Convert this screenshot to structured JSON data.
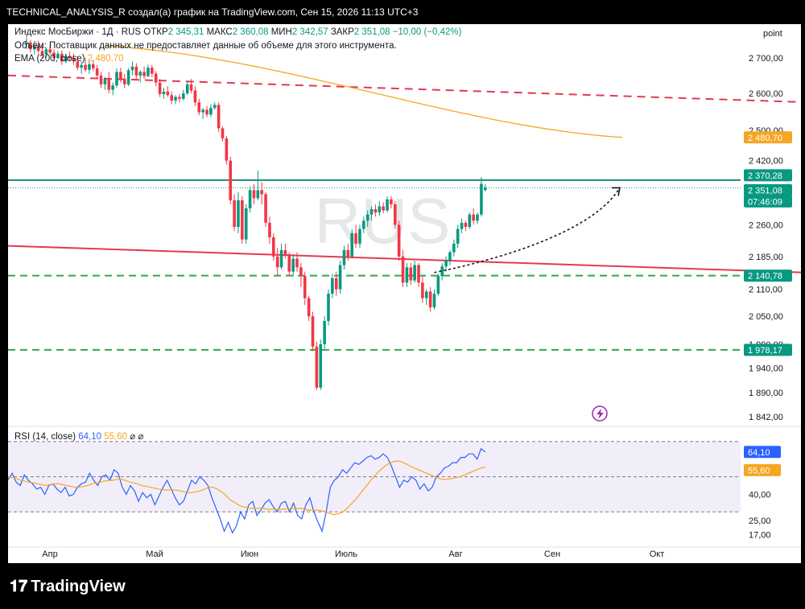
{
  "header": {
    "title": "TECHNICAL_ANALYSIS_R создал(а) график на TradingView.com, Сен 15, 2026 11:13 UTC+3"
  },
  "legend": {
    "symbol": "Индекс МосБиржи · 1Д · RUS",
    "open_label": "ОТКР",
    "open": "2 345,31",
    "high_label": "МАКС",
    "high": "2 360,08",
    "low_label": "МИН",
    "low": "2 342,57",
    "close_label": "ЗАКР",
    "close": "2 351,08",
    "change": "−10,00 (−0,42%)",
    "volume_note": "Объём: Поставщик данных не предоставляет данные об объеме для этого инструмента.",
    "ema_label": "EMA (200, close)",
    "ema_value": "2 480,70",
    "rsi_label": "RSI (14, close)",
    "rsi_value": "64,10",
    "rsi_ma_value": "55,60",
    "rsi_extra": "⌀ ⌀"
  },
  "watermark": "RUS",
  "price_axis": {
    "unit": "point",
    "ticks": [
      "2 700,00",
      "2 600,00",
      "2 500,00",
      "2 420,00",
      "2 260,00",
      "2 185,00",
      "2 110,00",
      "2 050,00",
      "1 990,00",
      "1 940,00",
      "1 890,00",
      "1 842,00"
    ],
    "badges": [
      {
        "text": "2 480,70",
        "color": "#f5a623"
      },
      {
        "text": "2 370,28",
        "color": "#089981"
      },
      {
        "text": "2 351,08",
        "color": "#089981"
      },
      {
        "text": "07:46:09",
        "color": "#089981"
      },
      {
        "text": "2 140,78",
        "color": "#089981"
      },
      {
        "text": "1 978,17",
        "color": "#089981"
      }
    ]
  },
  "rsi_axis": {
    "ticks": [
      "40,00",
      "25,00",
      "17,00"
    ],
    "badges": [
      {
        "text": "64,10",
        "color": "#2962ff"
      },
      {
        "text": "55,60",
        "color": "#f5a623"
      }
    ]
  },
  "time_axis": [
    "Апр",
    "Май",
    "Июн",
    "Июль",
    "Авг",
    "Сен",
    "Окт"
  ],
  "footer": {
    "brand": "TradingView"
  },
  "chart_data": {
    "type": "candlestick",
    "price_scale": [
      1842,
      2700
    ],
    "candles": [
      {
        "o": 2740,
        "h": 2760,
        "l": 2725,
        "c": 2745
      },
      {
        "o": 2745,
        "h": 2752,
        "l": 2715,
        "c": 2725
      },
      {
        "o": 2725,
        "h": 2745,
        "l": 2710,
        "c": 2735
      },
      {
        "o": 2735,
        "h": 2750,
        "l": 2715,
        "c": 2720
      },
      {
        "o": 2720,
        "h": 2735,
        "l": 2700,
        "c": 2710
      },
      {
        "o": 2710,
        "h": 2730,
        "l": 2700,
        "c": 2725
      },
      {
        "o": 2725,
        "h": 2740,
        "l": 2710,
        "c": 2715
      },
      {
        "o": 2715,
        "h": 2725,
        "l": 2690,
        "c": 2700
      },
      {
        "o": 2700,
        "h": 2720,
        "l": 2695,
        "c": 2712
      },
      {
        "o": 2712,
        "h": 2722,
        "l": 2680,
        "c": 2690
      },
      {
        "o": 2690,
        "h": 2712,
        "l": 2685,
        "c": 2705
      },
      {
        "o": 2705,
        "h": 2718,
        "l": 2690,
        "c": 2700
      },
      {
        "o": 2700,
        "h": 2712,
        "l": 2680,
        "c": 2690
      },
      {
        "o": 2690,
        "h": 2705,
        "l": 2665,
        "c": 2672
      },
      {
        "o": 2672,
        "h": 2690,
        "l": 2655,
        "c": 2680
      },
      {
        "o": 2680,
        "h": 2700,
        "l": 2660,
        "c": 2666
      },
      {
        "o": 2666,
        "h": 2690,
        "l": 2655,
        "c": 2682
      },
      {
        "o": 2682,
        "h": 2695,
        "l": 2662,
        "c": 2670
      },
      {
        "o": 2670,
        "h": 2680,
        "l": 2640,
        "c": 2650
      },
      {
        "o": 2650,
        "h": 2660,
        "l": 2615,
        "c": 2625
      },
      {
        "o": 2625,
        "h": 2645,
        "l": 2610,
        "c": 2640
      },
      {
        "o": 2640,
        "h": 2660,
        "l": 2600,
        "c": 2610
      },
      {
        "o": 2610,
        "h": 2630,
        "l": 2595,
        "c": 2622
      },
      {
        "o": 2622,
        "h": 2670,
        "l": 2615,
        "c": 2660
      },
      {
        "o": 2660,
        "h": 2672,
        "l": 2630,
        "c": 2640
      },
      {
        "o": 2640,
        "h": 2655,
        "l": 2615,
        "c": 2625
      },
      {
        "o": 2625,
        "h": 2670,
        "l": 2620,
        "c": 2665
      },
      {
        "o": 2665,
        "h": 2690,
        "l": 2650,
        "c": 2675
      },
      {
        "o": 2675,
        "h": 2685,
        "l": 2640,
        "c": 2650
      },
      {
        "o": 2650,
        "h": 2665,
        "l": 2630,
        "c": 2660
      },
      {
        "o": 2660,
        "h": 2675,
        "l": 2640,
        "c": 2648
      },
      {
        "o": 2648,
        "h": 2680,
        "l": 2645,
        "c": 2672
      },
      {
        "o": 2672,
        "h": 2680,
        "l": 2645,
        "c": 2655
      },
      {
        "o": 2655,
        "h": 2662,
        "l": 2620,
        "c": 2630
      },
      {
        "o": 2630,
        "h": 2640,
        "l": 2590,
        "c": 2598
      },
      {
        "o": 2598,
        "h": 2615,
        "l": 2585,
        "c": 2605
      },
      {
        "o": 2605,
        "h": 2620,
        "l": 2590,
        "c": 2595
      },
      {
        "o": 2595,
        "h": 2605,
        "l": 2570,
        "c": 2580
      },
      {
        "o": 2580,
        "h": 2595,
        "l": 2570,
        "c": 2590
      },
      {
        "o": 2590,
        "h": 2598,
        "l": 2575,
        "c": 2585
      },
      {
        "o": 2585,
        "h": 2610,
        "l": 2580,
        "c": 2600
      },
      {
        "o": 2600,
        "h": 2635,
        "l": 2595,
        "c": 2625
      },
      {
        "o": 2625,
        "h": 2640,
        "l": 2600,
        "c": 2608
      },
      {
        "o": 2608,
        "h": 2620,
        "l": 2565,
        "c": 2575
      },
      {
        "o": 2575,
        "h": 2585,
        "l": 2540,
        "c": 2548
      },
      {
        "o": 2548,
        "h": 2560,
        "l": 2530,
        "c": 2555
      },
      {
        "o": 2555,
        "h": 2565,
        "l": 2535,
        "c": 2542
      },
      {
        "o": 2542,
        "h": 2570,
        "l": 2535,
        "c": 2560
      },
      {
        "o": 2560,
        "h": 2575,
        "l": 2555,
        "c": 2568
      },
      {
        "o": 2568,
        "h": 2575,
        "l": 2495,
        "c": 2505
      },
      {
        "o": 2505,
        "h": 2510,
        "l": 2470,
        "c": 2478
      },
      {
        "o": 2478,
        "h": 2485,
        "l": 2410,
        "c": 2420
      },
      {
        "o": 2420,
        "h": 2430,
        "l": 2310,
        "c": 2320
      },
      {
        "o": 2320,
        "h": 2335,
        "l": 2245,
        "c": 2255
      },
      {
        "o": 2255,
        "h": 2340,
        "l": 2240,
        "c": 2320
      },
      {
        "o": 2320,
        "h": 2330,
        "l": 2215,
        "c": 2225
      },
      {
        "o": 2225,
        "h": 2310,
        "l": 2215,
        "c": 2300
      },
      {
        "o": 2300,
        "h": 2355,
        "l": 2290,
        "c": 2345
      },
      {
        "o": 2345,
        "h": 2360,
        "l": 2310,
        "c": 2325
      },
      {
        "o": 2325,
        "h": 2395,
        "l": 2320,
        "c": 2345
      },
      {
        "o": 2345,
        "h": 2365,
        "l": 2310,
        "c": 2335
      },
      {
        "o": 2335,
        "h": 2340,
        "l": 2255,
        "c": 2265
      },
      {
        "o": 2265,
        "h": 2280,
        "l": 2215,
        "c": 2230
      },
      {
        "o": 2230,
        "h": 2240,
        "l": 2175,
        "c": 2185
      },
      {
        "o": 2185,
        "h": 2205,
        "l": 2140,
        "c": 2160
      },
      {
        "o": 2160,
        "h": 2215,
        "l": 2155,
        "c": 2200
      },
      {
        "o": 2200,
        "h": 2215,
        "l": 2180,
        "c": 2190
      },
      {
        "o": 2190,
        "h": 2195,
        "l": 2140,
        "c": 2150
      },
      {
        "o": 2150,
        "h": 2190,
        "l": 2140,
        "c": 2180
      },
      {
        "o": 2180,
        "h": 2195,
        "l": 2150,
        "c": 2160
      },
      {
        "o": 2160,
        "h": 2170,
        "l": 2115,
        "c": 2140
      },
      {
        "o": 2140,
        "h": 2150,
        "l": 2075,
        "c": 2090
      },
      {
        "o": 2090,
        "h": 2095,
        "l": 2040,
        "c": 2050
      },
      {
        "o": 2050,
        "h": 2060,
        "l": 1975,
        "c": 1985
      },
      {
        "o": 1985,
        "h": 1995,
        "l": 1895,
        "c": 1900
      },
      {
        "o": 1900,
        "h": 2000,
        "l": 1895,
        "c": 1990
      },
      {
        "o": 1990,
        "h": 2050,
        "l": 1980,
        "c": 2040
      },
      {
        "o": 2040,
        "h": 2110,
        "l": 2030,
        "c": 2100
      },
      {
        "o": 2100,
        "h": 2145,
        "l": 2090,
        "c": 2135
      },
      {
        "o": 2135,
        "h": 2150,
        "l": 2095,
        "c": 2110
      },
      {
        "o": 2110,
        "h": 2175,
        "l": 2100,
        "c": 2165
      },
      {
        "o": 2165,
        "h": 2210,
        "l": 2155,
        "c": 2200
      },
      {
        "o": 2200,
        "h": 2215,
        "l": 2175,
        "c": 2185
      },
      {
        "o": 2185,
        "h": 2250,
        "l": 2180,
        "c": 2240
      },
      {
        "o": 2240,
        "h": 2260,
        "l": 2205,
        "c": 2215
      },
      {
        "o": 2215,
        "h": 2260,
        "l": 2205,
        "c": 2250
      },
      {
        "o": 2250,
        "h": 2280,
        "l": 2240,
        "c": 2270
      },
      {
        "o": 2270,
        "h": 2295,
        "l": 2255,
        "c": 2285
      },
      {
        "o": 2285,
        "h": 2305,
        "l": 2270,
        "c": 2298
      },
      {
        "o": 2298,
        "h": 2310,
        "l": 2280,
        "c": 2290
      },
      {
        "o": 2290,
        "h": 2318,
        "l": 2282,
        "c": 2305
      },
      {
        "o": 2305,
        "h": 2315,
        "l": 2288,
        "c": 2295
      },
      {
        "o": 2295,
        "h": 2330,
        "l": 2290,
        "c": 2322
      },
      {
        "o": 2322,
        "h": 2330,
        "l": 2300,
        "c": 2310
      },
      {
        "o": 2310,
        "h": 2318,
        "l": 2250,
        "c": 2260
      },
      {
        "o": 2260,
        "h": 2270,
        "l": 2175,
        "c": 2185
      },
      {
        "o": 2185,
        "h": 2200,
        "l": 2115,
        "c": 2125
      },
      {
        "o": 2125,
        "h": 2170,
        "l": 2115,
        "c": 2160
      },
      {
        "o": 2160,
        "h": 2170,
        "l": 2120,
        "c": 2130
      },
      {
        "o": 2130,
        "h": 2175,
        "l": 2125,
        "c": 2165
      },
      {
        "o": 2165,
        "h": 2170,
        "l": 2115,
        "c": 2125
      },
      {
        "o": 2125,
        "h": 2140,
        "l": 2080,
        "c": 2090
      },
      {
        "o": 2090,
        "h": 2110,
        "l": 2075,
        "c": 2105
      },
      {
        "o": 2105,
        "h": 2115,
        "l": 2060,
        "c": 2070
      },
      {
        "o": 2070,
        "h": 2110,
        "l": 2065,
        "c": 2100
      },
      {
        "o": 2100,
        "h": 2145,
        "l": 2095,
        "c": 2140
      },
      {
        "o": 2140,
        "h": 2170,
        "l": 2130,
        "c": 2162
      },
      {
        "o": 2162,
        "h": 2185,
        "l": 2150,
        "c": 2175
      },
      {
        "o": 2175,
        "h": 2200,
        "l": 2165,
        "c": 2195
      },
      {
        "o": 2195,
        "h": 2225,
        "l": 2185,
        "c": 2215
      },
      {
        "o": 2215,
        "h": 2260,
        "l": 2205,
        "c": 2250
      },
      {
        "o": 2250,
        "h": 2275,
        "l": 2240,
        "c": 2265
      },
      {
        "o": 2265,
        "h": 2270,
        "l": 2245,
        "c": 2255
      },
      {
        "o": 2255,
        "h": 2290,
        "l": 2250,
        "c": 2285
      },
      {
        "o": 2285,
        "h": 2300,
        "l": 2260,
        "c": 2270
      },
      {
        "o": 2270,
        "h": 2290,
        "l": 2262,
        "c": 2285
      },
      {
        "o": 2285,
        "h": 2378,
        "l": 2280,
        "c": 2361
      },
      {
        "o": 2345.31,
        "h": 2360.08,
        "l": 2342.57,
        "c": 2351.08
      }
    ],
    "ema200": {
      "start": [
        20,
        2735
      ],
      "end": [
        152,
        2480.7
      ]
    },
    "trend_red_dashed": {
      "from": [
        0,
        2650
      ],
      "to": [
        225,
        2566
      ]
    },
    "trend_red_solid": {
      "from": [
        0,
        2210
      ],
      "to": [
        225,
        2140
      ]
    },
    "resistance_line": 2370.28,
    "last_price": 2351.08,
    "support_dashed_upper": 2140.78,
    "support_dashed_lower": 1978.17,
    "rsi": [
      48.2,
      52,
      47,
      45,
      51,
      48,
      46,
      43,
      44,
      40,
      45,
      46,
      43,
      41,
      44,
      39,
      40,
      44,
      46,
      47,
      52,
      48,
      45,
      50,
      51,
      48,
      54,
      52,
      44,
      40,
      45,
      42,
      36,
      41,
      38,
      40,
      34,
      39,
      44,
      48,
      43,
      38,
      34,
      36,
      42,
      48,
      46,
      50,
      48,
      45,
      38,
      32,
      26,
      19,
      24,
      18,
      22,
      30,
      26,
      34,
      36,
      28,
      31,
      35,
      37,
      33,
      30,
      35,
      36,
      30,
      35,
      28,
      26,
      34,
      38,
      30,
      24,
      19,
      30,
      44,
      48,
      50,
      54,
      52,
      55,
      58,
      57,
      59,
      61,
      62,
      60,
      61,
      63,
      61,
      56,
      50,
      44,
      48,
      47,
      50,
      48,
      43,
      46,
      42,
      44,
      50,
      52,
      55,
      56,
      58,
      58,
      61,
      61,
      63,
      63,
      60,
      66,
      64.1
    ],
    "rsi_ma": [
      50,
      49.5,
      49,
      48,
      47.5,
      47,
      46.5,
      46,
      45.5,
      45,
      45.5,
      46,
      46,
      45.5,
      45,
      44.5,
      44,
      44,
      44.5,
      45,
      46,
      46.5,
      47,
      47.5,
      48,
      48,
      48.5,
      48.5,
      48,
      47,
      46.5,
      46,
      45,
      44.5,
      44,
      43.5,
      43,
      42.5,
      42.5,
      42.5,
      42.5,
      42,
      41.5,
      41,
      41,
      41.5,
      42,
      43,
      44,
      44,
      43,
      41.5,
      39.5,
      37,
      35.5,
      34,
      33,
      32.5,
      32,
      32,
      32,
      32,
      31.5,
      31.5,
      31.5,
      31.5,
      31.5,
      32,
      32,
      32,
      32,
      31.5,
      31,
      31,
      31,
      30.5,
      30,
      29,
      28.5,
      29,
      30,
      32,
      34.5,
      37,
      40,
      43,
      46,
      49,
      51.5,
      54,
      56,
      57.5,
      58.5,
      59,
      58.5,
      57.5,
      56,
      55,
      54,
      53,
      52,
      51,
      50,
      49,
      48.5,
      48.5,
      49,
      49.5,
      50,
      51,
      52,
      53,
      54,
      55,
      55.6
    ],
    "rsi_scale": [
      10,
      75
    ],
    "rsi_bands": [
      70,
      50,
      30
    ]
  }
}
